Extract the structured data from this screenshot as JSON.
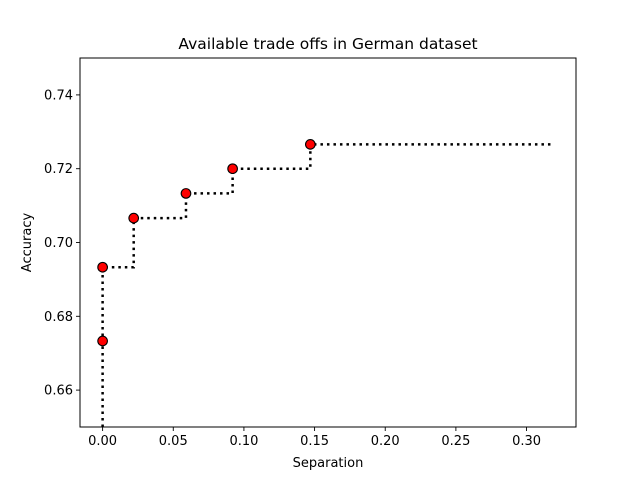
{
  "chart_data": {
    "type": "line",
    "title": "Available trade offs in German dataset",
    "xlabel": "Separation",
    "ylabel": "Accuracy",
    "xlim": [
      -0.016,
      0.335
    ],
    "ylim": [
      0.65,
      0.75
    ],
    "xticks": [
      0.0,
      0.05,
      0.1,
      0.15,
      0.2,
      0.25,
      0.3
    ],
    "xtick_labels": [
      "0.00",
      "0.05",
      "0.10",
      "0.15",
      "0.20",
      "0.25",
      "0.30"
    ],
    "yticks": [
      0.66,
      0.68,
      0.7,
      0.72,
      0.74
    ],
    "ytick_labels": [
      "0.66",
      "0.68",
      "0.70",
      "0.72",
      "0.74"
    ],
    "grid": false,
    "legend": "none",
    "series": [
      {
        "style": "step",
        "line_style": "dotted",
        "color": "#000000",
        "x": [
          0.0,
          0.0,
          0.0,
          0.0,
          0.022,
          0.022,
          0.059,
          0.059,
          0.092,
          0.092,
          0.147,
          0.147,
          0.317
        ],
        "y": [
          0.65,
          0.6733,
          0.6733,
          0.6933,
          0.6933,
          0.7066,
          0.7066,
          0.7133,
          0.7133,
          0.72,
          0.72,
          0.7266,
          0.7266
        ]
      },
      {
        "style": "markers",
        "marker_color": "#ff0000",
        "marker_edge_color": "#000000",
        "x": [
          0.0,
          0.0,
          0.022,
          0.059,
          0.092,
          0.147
        ],
        "y": [
          0.6733,
          0.6933,
          0.7066,
          0.7133,
          0.72,
          0.7266
        ]
      }
    ]
  }
}
